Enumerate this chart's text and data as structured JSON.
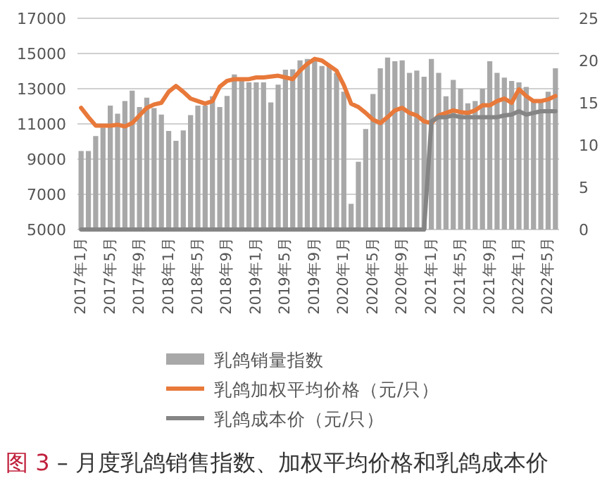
{
  "chart_data": {
    "type": "bar",
    "title": "图 3 – 月度乳鸽销售指数、加权平均价格和乳鸽成本价",
    "categories": [
      "2017年1月",
      null,
      null,
      null,
      "2017年5月",
      null,
      null,
      null,
      "2017年9月",
      null,
      null,
      null,
      "2018年1月",
      null,
      null,
      null,
      "2018年5月",
      null,
      null,
      null,
      "2018年9月",
      null,
      null,
      null,
      "2019年1月",
      null,
      null,
      null,
      "2019年5月",
      null,
      null,
      null,
      "2019年9月",
      null,
      null,
      null,
      "2020年1月",
      null,
      null,
      null,
      "2020年5月",
      null,
      null,
      null,
      "2020年9月",
      null,
      null,
      null,
      "2021年1月",
      null,
      null,
      null,
      "2021年5月",
      null,
      null,
      null,
      "2021年9月",
      null,
      null,
      null,
      "2022年1月",
      null,
      null,
      null,
      "2022年5月",
      null
    ],
    "series": [
      {
        "name": "乳鸽销量指数",
        "color": "#a8a8a8",
        "values": [
          9460,
          9460,
          10310,
          10790,
          12040,
          11580,
          12300,
          12890,
          11960,
          12490,
          11900,
          11530,
          10600,
          10040,
          10630,
          11500,
          12040,
          12040,
          12570,
          11960,
          12590,
          13810,
          13630,
          13360,
          13360,
          13360,
          12220,
          13230,
          14080,
          14100,
          14610,
          14690,
          14610,
          14290,
          14290,
          13900,
          12830,
          6460,
          8850,
          10710,
          12700,
          14160,
          14770,
          14560,
          14610,
          13900,
          14030,
          13680,
          14690,
          13900,
          12570,
          13500,
          13000,
          12170,
          12300,
          13000,
          14560,
          13900,
          13630,
          13440,
          13360,
          13100,
          12300,
          12300,
          12830,
          14160
        ]
      },
      {
        "name": "乳鸽加权平均价格（元/只）",
        "type": "line",
        "axis": "y2",
        "color": "#e8793a",
        "values": [
          14.4,
          13.3,
          12.3,
          12.3,
          12.3,
          12.4,
          12.2,
          12.6,
          13.5,
          14.4,
          14.8,
          15.0,
          16.3,
          17.0,
          16.3,
          15.5,
          15.2,
          14.9,
          15.2,
          16.9,
          17.6,
          17.8,
          17.8,
          17.8,
          18.0,
          18.0,
          18.1,
          18.2,
          18.0,
          17.8,
          18.8,
          19.6,
          20.2,
          20.0,
          19.4,
          18.8,
          17.1,
          14.9,
          14.5,
          13.8,
          13.0,
          12.6,
          13.3,
          14.1,
          14.4,
          13.8,
          13.5,
          12.8,
          12.6,
          13.5,
          13.8,
          14.1,
          13.9,
          13.8,
          14.1,
          14.7,
          14.7,
          15.2,
          15.5,
          15.0,
          16.6,
          15.8,
          15.2,
          15.2,
          15.4,
          15.8
        ]
      },
      {
        "name": "乳鸽成本价（元/只）",
        "type": "line",
        "axis": "y2",
        "color": "#858585",
        "values": [
          0,
          0,
          0,
          0,
          0,
          0,
          0,
          0,
          0,
          0,
          0,
          0,
          0,
          0,
          0,
          0,
          0,
          0,
          0,
          0,
          0,
          0,
          0,
          0,
          0,
          0,
          0,
          0,
          0,
          0,
          0,
          0,
          0,
          0,
          0,
          0,
          0,
          0,
          0,
          0,
          0,
          0,
          0,
          0,
          0,
          0,
          0,
          0,
          12.8,
          13.3,
          13.3,
          13.5,
          13.3,
          13.3,
          13.3,
          13.3,
          13.3,
          13.3,
          13.5,
          13.6,
          14.0,
          13.6,
          13.8,
          14.0,
          14.0,
          14.0
        ]
      }
    ],
    "ylim": [
      5000,
      17000
    ],
    "yticks": [
      5000,
      7000,
      9000,
      11000,
      13000,
      15000,
      17000
    ],
    "y2lim": [
      0,
      25
    ],
    "y2ticks": [
      0,
      5,
      10,
      15,
      20,
      25
    ],
    "grid": "y",
    "legend": "bottom"
  }
}
